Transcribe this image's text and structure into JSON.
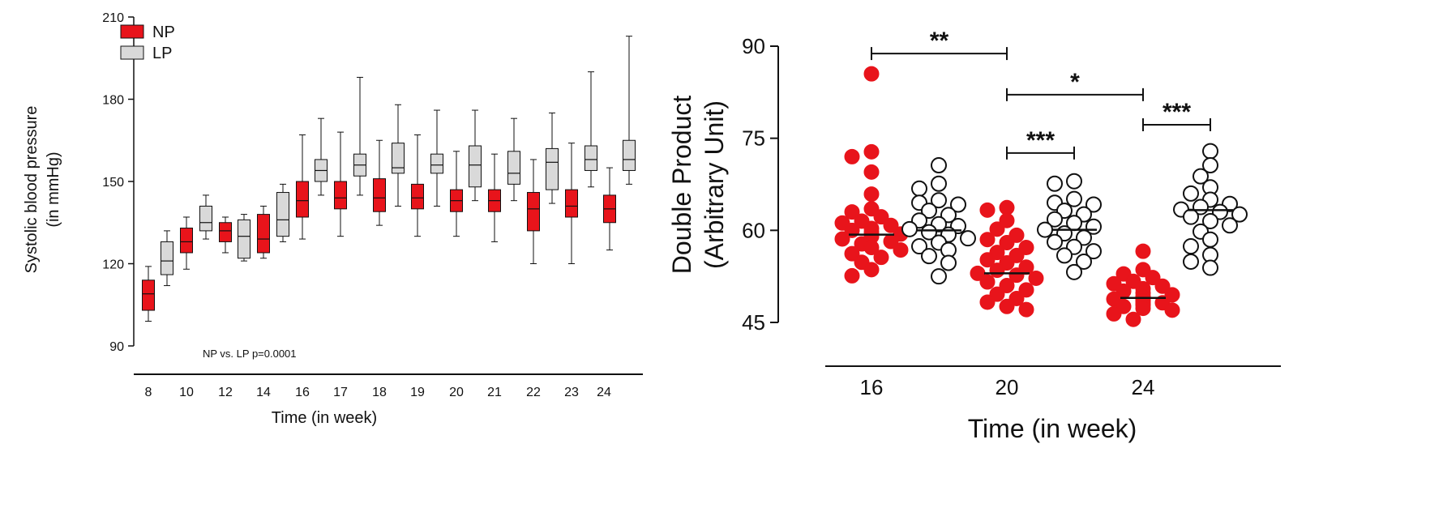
{
  "chart_data": [
    {
      "type": "box",
      "title": "",
      "xlabel": "Time (in week)",
      "ylabel_line1": "Systolic blood pressure",
      "ylabel_line2": "(in mmHg)",
      "ylim": [
        90,
        210
      ],
      "yticks": [
        90,
        120,
        150,
        180,
        210
      ],
      "xtick_labels": [
        "8",
        "10",
        "12",
        "14",
        "16",
        "17",
        "18",
        "19",
        "20",
        "21",
        "22",
        "23",
        "24"
      ],
      "annotation": "NP vs. LP p=0.0001",
      "legend": [
        {
          "name": "NP",
          "color": "#e8141b"
        },
        {
          "name": "LP",
          "color": "#d9d9d9"
        }
      ],
      "boxes": [
        {
          "week": "8",
          "group": "NP",
          "min": 99,
          "q1": 103,
          "median": 109,
          "q3": 114,
          "max": 119
        },
        {
          "week": "9",
          "group": "LP",
          "min": 112,
          "q1": 116,
          "median": 121,
          "q3": 128,
          "max": 132
        },
        {
          "week": "10",
          "group": "NP",
          "min": 118,
          "q1": 124,
          "median": 128,
          "q3": 133,
          "max": 137
        },
        {
          "week": "11",
          "group": "LP",
          "min": 129,
          "q1": 132,
          "median": 135,
          "q3": 141,
          "max": 145
        },
        {
          "week": "12",
          "group": "NP",
          "min": 124,
          "q1": 128,
          "median": 132,
          "q3": 135,
          "max": 137
        },
        {
          "week": "13",
          "group": "LP",
          "min": 121,
          "q1": 122,
          "median": 130,
          "q3": 136,
          "max": 138
        },
        {
          "week": "14",
          "group": "NP",
          "min": 122,
          "q1": 124,
          "median": 129,
          "q3": 138,
          "max": 141
        },
        {
          "week": "15",
          "group": "LP",
          "min": 128,
          "q1": 130,
          "median": 136,
          "q3": 146,
          "max": 149
        },
        {
          "week": "16",
          "group": "NP",
          "min": 129,
          "q1": 137,
          "median": 143,
          "q3": 150,
          "max": 167
        },
        {
          "week": "16",
          "group": "LP",
          "min": 145,
          "q1": 150,
          "median": 154,
          "q3": 158,
          "max": 173
        },
        {
          "week": "17",
          "group": "NP",
          "min": 130,
          "q1": 140,
          "median": 144,
          "q3": 150,
          "max": 168
        },
        {
          "week": "17",
          "group": "LP",
          "min": 145,
          "q1": 152,
          "median": 156,
          "q3": 160,
          "max": 188
        },
        {
          "week": "18",
          "group": "NP",
          "min": 134,
          "q1": 139,
          "median": 144,
          "q3": 151,
          "max": 165
        },
        {
          "week": "18",
          "group": "LP",
          "min": 141,
          "q1": 153,
          "median": 155,
          "q3": 164,
          "max": 178
        },
        {
          "week": "19",
          "group": "NP",
          "min": 130,
          "q1": 140,
          "median": 144,
          "q3": 149,
          "max": 167
        },
        {
          "week": "19",
          "group": "LP",
          "min": 141,
          "q1": 153,
          "median": 156,
          "q3": 160,
          "max": 176
        },
        {
          "week": "20",
          "group": "NP",
          "min": 130,
          "q1": 139,
          "median": 143,
          "q3": 147,
          "max": 161
        },
        {
          "week": "20",
          "group": "LP",
          "min": 143,
          "q1": 148,
          "median": 156,
          "q3": 163,
          "max": 176
        },
        {
          "week": "21",
          "group": "NP",
          "min": 128,
          "q1": 139,
          "median": 143,
          "q3": 147,
          "max": 160
        },
        {
          "week": "21",
          "group": "LP",
          "min": 143,
          "q1": 149,
          "median": 153,
          "q3": 161,
          "max": 173
        },
        {
          "week": "22",
          "group": "NP",
          "min": 120,
          "q1": 132,
          "median": 140,
          "q3": 146,
          "max": 158
        },
        {
          "week": "22",
          "group": "LP",
          "min": 142,
          "q1": 147,
          "median": 157,
          "q3": 162,
          "max": 175
        },
        {
          "week": "23",
          "group": "NP",
          "min": 120,
          "q1": 137,
          "median": 141,
          "q3": 147,
          "max": 164
        },
        {
          "week": "23",
          "group": "LP",
          "min": 148,
          "q1": 154,
          "median": 158,
          "q3": 163,
          "max": 190
        },
        {
          "week": "24",
          "group": "NP",
          "min": 125,
          "q1": 135,
          "median": 140,
          "q3": 145,
          "max": 155
        },
        {
          "week": "24",
          "group": "LP",
          "min": 149,
          "q1": 154,
          "median": 158,
          "q3": 165,
          "max": 203
        }
      ]
    },
    {
      "type": "scatter",
      "title": "",
      "xlabel": "Time (in week)",
      "ylabel_line1": "Double Product",
      "ylabel_line2": "(Arbitrary Unit)",
      "ylim": [
        45,
        90
      ],
      "yticks": [
        45,
        60,
        75,
        90
      ],
      "categories": [
        "16",
        "20",
        "24"
      ],
      "groups": [
        {
          "week": "16",
          "group": "NP",
          "filled": true,
          "color": "#e8141b",
          "mean": 59.3,
          "values": [
            85.5,
            72.8,
            72.0,
            69.5,
            65.9,
            63.5,
            63.0,
            62.2,
            61.5,
            61.2,
            60.8,
            60.3,
            60.0,
            59.7,
            59.4,
            59.0,
            58.6,
            58.2,
            57.8,
            57.2,
            56.8,
            56.2,
            55.6,
            54.8,
            53.6,
            52.6
          ]
        },
        {
          "week": "16",
          "group": "LP",
          "filled": false,
          "color": "#111111",
          "mean": 60.0,
          "values": [
            70.6,
            67.6,
            66.8,
            64.9,
            64.5,
            64.2,
            63.2,
            62.5,
            61.6,
            61.0,
            60.7,
            60.2,
            59.7,
            59.3,
            58.7,
            58.0,
            57.4,
            56.8,
            55.8,
            54.7,
            52.5
          ]
        },
        {
          "week": "20",
          "group": "NP",
          "filled": true,
          "color": "#e8141b",
          "mean": 53.0,
          "values": [
            63.7,
            63.3,
            61.6,
            60.2,
            59.2,
            58.5,
            58.0,
            57.2,
            56.4,
            55.9,
            55.2,
            54.7,
            54.0,
            53.5,
            53.0,
            52.7,
            52.2,
            51.6,
            51.0,
            50.3,
            49.6,
            48.9,
            48.3,
            47.6,
            47.1
          ]
        },
        {
          "week": "20",
          "group": "LP",
          "filled": false,
          "color": "#111111",
          "mean": 60.1,
          "values": [
            68.0,
            67.6,
            65.1,
            64.5,
            64.2,
            63.2,
            62.6,
            61.8,
            61.2,
            60.6,
            60.1,
            59.5,
            58.8,
            58.1,
            57.3,
            56.6,
            55.9,
            54.9,
            53.2
          ]
        },
        {
          "week": "24",
          "group": "NP",
          "filled": true,
          "color": "#e8141b",
          "mean": 49.0,
          "values": [
            56.6,
            53.6,
            52.9,
            52.3,
            51.7,
            51.3,
            50.9,
            50.5,
            50.1,
            49.8,
            49.5,
            49.2,
            49.0,
            48.8,
            48.6,
            48.4,
            48.2,
            48.0,
            47.8,
            47.6,
            47.3,
            47.0,
            46.4,
            45.5
          ]
        },
        {
          "week": "24",
          "group": "LP",
          "filled": false,
          "color": "#111111",
          "mean": 63.3,
          "values": [
            72.9,
            70.6,
            68.8,
            67.0,
            66.0,
            65.0,
            64.3,
            63.8,
            63.4,
            63.0,
            62.6,
            62.2,
            61.5,
            60.8,
            59.8,
            58.5,
            57.4,
            56.0,
            54.9,
            53.9
          ]
        }
      ],
      "significance": [
        {
          "label": "**",
          "from": "16 NP",
          "to": "20 NP",
          "y": 88.8
        },
        {
          "label": "*",
          "from": "20 NP",
          "to": "24 NP",
          "y": 82.1
        },
        {
          "label": "***",
          "from": "20 NP",
          "to": "20 LP",
          "y": 72.6
        },
        {
          "label": "***",
          "from": "24 NP",
          "to": "24 LP",
          "y": 77.2
        }
      ]
    }
  ]
}
